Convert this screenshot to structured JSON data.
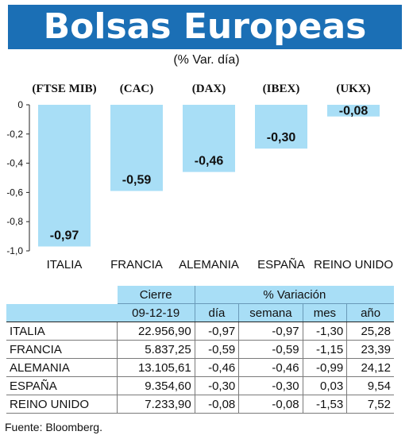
{
  "header": {
    "title": "Bolsas Europeas",
    "subtitle": "(% Var. día)"
  },
  "chart_data": {
    "type": "bar",
    "indices": [
      "(FTSE MIB)",
      "(CAC)",
      "(DAX)",
      "(IBEX)",
      "(UKX)"
    ],
    "categories": [
      "ITALIA",
      "FRANCIA",
      "ALEMANIA",
      "ESPAÑA",
      "REINO UNIDO"
    ],
    "values": [
      -0.97,
      -0.59,
      -0.46,
      -0.3,
      -0.08
    ],
    "value_labels": [
      "-0,97",
      "-0,59",
      "-0,46",
      "-0,30",
      "-0,08"
    ],
    "ylim": [
      -1.0,
      0
    ],
    "yticks": [
      0,
      -0.2,
      -0.4,
      -0.6,
      -0.8,
      -1.0
    ],
    "ytick_labels": [
      "0",
      "-0,2",
      "-0,4",
      "-0,6",
      "-0,8",
      "-1,0"
    ],
    "bar_color": "#a8def6"
  },
  "table": {
    "head": {
      "cierre": "Cierre",
      "variacion": "% Variación",
      "fecha": "09-12-19",
      "dia": "día",
      "semana": "semana",
      "mes": "mes",
      "ano": "año"
    },
    "rows": [
      {
        "name": "ITALIA",
        "cierre": "22.956,90",
        "dia": "-0,97",
        "semana": "-0,97",
        "mes": "-1,30",
        "ano": "25,28"
      },
      {
        "name": "FRANCIA",
        "cierre": "5.837,25",
        "dia": "-0,59",
        "semana": "-0,59",
        "mes": "-1,15",
        "ano": "23,39"
      },
      {
        "name": "ALEMANIA",
        "cierre": "13.105,61",
        "dia": "-0,46",
        "semana": "-0,46",
        "mes": "-0,99",
        "ano": "24,12"
      },
      {
        "name": "ESPAÑA",
        "cierre": "9.354,60",
        "dia": "-0,30",
        "semana": "-0,30",
        "mes": "0,03",
        "ano": "9,54"
      },
      {
        "name": "REINO UNIDO",
        "cierre": "7.233,90",
        "dia": "-0,08",
        "semana": "-0,08",
        "mes": "-1,53",
        "ano": "7,52"
      }
    ]
  },
  "source": "Fuente: Bloomberg."
}
